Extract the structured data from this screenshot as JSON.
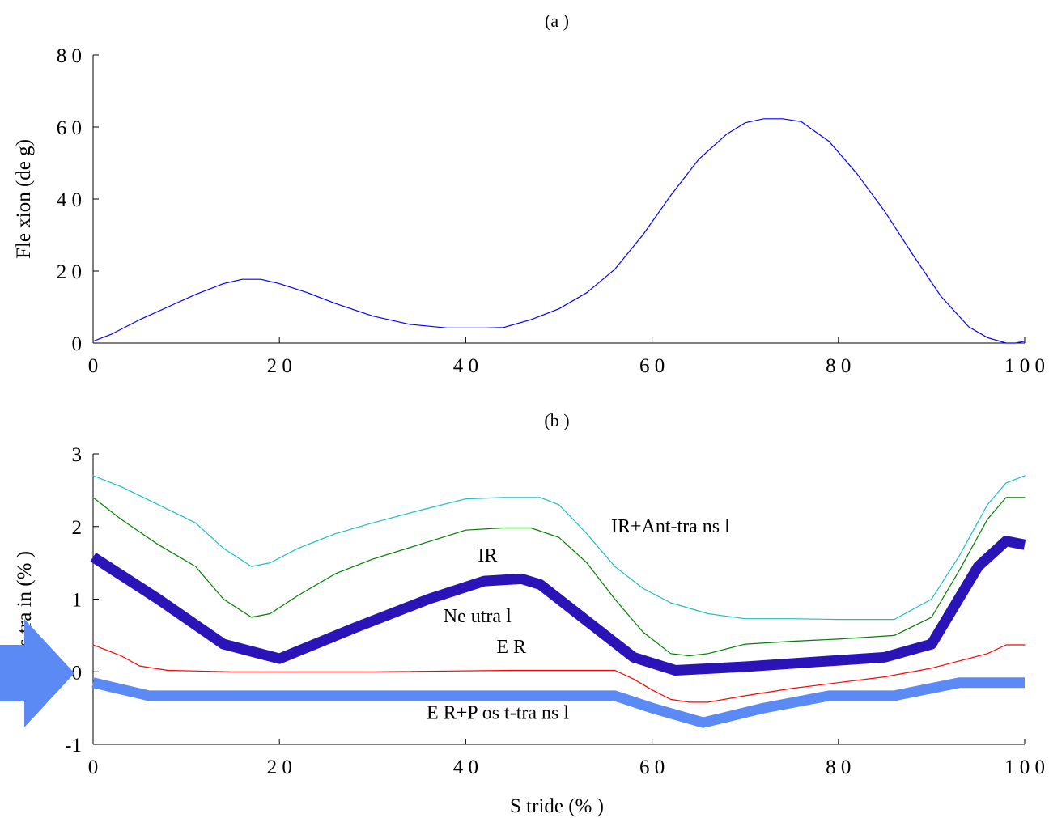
{
  "chart_data": [
    {
      "type": "line",
      "title": "(a )",
      "xlabel": "",
      "ylabel": "Fle xion (de g)",
      "xlim": [
        0,
        100
      ],
      "ylim": [
        0,
        80
      ],
      "xticks": [
        0,
        20,
        40,
        60,
        80,
        100
      ],
      "xtick_labels": [
        "0",
        "2 0",
        "4 0",
        "6 0",
        "8 0",
        "1 0 0"
      ],
      "yticks": [
        0,
        20,
        40,
        60,
        80
      ],
      "ytick_labels": [
        "0",
        "2 0",
        "4 0",
        "6 0",
        "8 0"
      ],
      "series": [
        {
          "color": "#0000ff",
          "x": [
            0,
            2,
            5,
            8,
            11,
            14,
            16,
            18,
            20,
            23,
            26,
            30,
            34,
            38,
            42,
            44,
            47,
            50,
            53,
            56,
            59,
            62,
            65,
            68,
            70,
            72,
            74,
            76,
            79,
            82,
            85,
            88,
            91,
            94,
            96,
            98,
            99,
            100
          ],
          "y": [
            0.5,
            2.5,
            6.5,
            10,
            13.5,
            16.5,
            17.7,
            17.7,
            16.5,
            14,
            11,
            7.5,
            5.2,
            4.2,
            4.2,
            4.3,
            6.5,
            9.5,
            14,
            20.5,
            30,
            41,
            51,
            58,
            61.2,
            62.3,
            62.3,
            61.5,
            56,
            47,
            36.5,
            24.5,
            13,
            4.5,
            1.5,
            0,
            0,
            0.5
          ]
        }
      ]
    },
    {
      "type": "line",
      "title": "(b )",
      "xlabel": "S tride (% )",
      "ylabel": "s tra in (% )",
      "xlim": [
        0,
        100
      ],
      "ylim": [
        -1,
        3
      ],
      "xticks": [
        0,
        20,
        40,
        60,
        80,
        100
      ],
      "xtick_labels": [
        "0",
        "2 0",
        "4 0",
        "6 0",
        "8 0",
        "1 0 0"
      ],
      "yticks": [
        -1,
        0,
        1,
        2,
        3
      ],
      "ytick_labels": [
        "-1",
        "0",
        "1",
        "2",
        "3"
      ],
      "series": [
        {
          "name": "IR+Ant-tra ns l",
          "color": "#1fbfbf",
          "width": 1.2,
          "x": [
            0,
            3,
            7,
            11,
            14,
            17,
            19,
            22,
            26,
            30,
            35,
            40,
            44,
            48,
            50,
            53,
            56,
            59,
            62,
            66,
            70,
            75,
            80,
            86,
            90,
            93,
            96,
            98,
            100
          ],
          "y": [
            2.7,
            2.55,
            2.3,
            2.05,
            1.7,
            1.45,
            1.5,
            1.7,
            1.9,
            2.05,
            2.22,
            2.38,
            2.4,
            2.4,
            2.3,
            1.9,
            1.45,
            1.15,
            0.95,
            0.8,
            0.73,
            0.73,
            0.72,
            0.72,
            1.0,
            1.6,
            2.3,
            2.6,
            2.7
          ]
        },
        {
          "name": "IR",
          "color": "#007f00",
          "width": 1.2,
          "x": [
            0,
            3,
            7,
            11,
            14,
            17,
            19,
            22,
            26,
            30,
            35,
            40,
            44,
            47,
            50,
            53,
            56,
            59,
            62,
            64,
            66,
            70,
            75,
            80,
            86,
            90,
            93,
            96,
            98,
            100
          ],
          "y": [
            2.4,
            2.1,
            1.75,
            1.45,
            1.0,
            0.75,
            0.8,
            1.05,
            1.35,
            1.55,
            1.75,
            1.95,
            1.98,
            1.98,
            1.85,
            1.5,
            1.0,
            0.55,
            0.25,
            0.22,
            0.25,
            0.38,
            0.42,
            0.45,
            0.5,
            0.75,
            1.4,
            2.1,
            2.4,
            2.4
          ]
        },
        {
          "name": "Ne utra l",
          "color": "#2a14b8",
          "width": 13,
          "x": [
            0,
            7,
            14,
            20,
            28,
            36,
            42,
            46,
            48,
            53,
            58,
            62.5,
            70,
            78,
            85,
            90,
            95,
            98,
            100
          ],
          "y": [
            1.58,
            1.0,
            0.38,
            0.18,
            0.6,
            1.0,
            1.25,
            1.28,
            1.2,
            0.7,
            0.2,
            0.02,
            0.07,
            0.14,
            0.2,
            0.38,
            1.45,
            1.8,
            1.75
          ]
        },
        {
          "name": "E R",
          "color": "#ff0000",
          "width": 1.2,
          "x": [
            0,
            3,
            5,
            8,
            15,
            30,
            45,
            56,
            58,
            60,
            62,
            64,
            66,
            70,
            75,
            80,
            85,
            90,
            93,
            96,
            98,
            100
          ],
          "y": [
            0.37,
            0.22,
            0.08,
            0.02,
            0.0,
            0.0,
            0.02,
            0.02,
            -0.1,
            -0.25,
            -0.38,
            -0.42,
            -0.42,
            -0.33,
            -0.23,
            -0.15,
            -0.07,
            0.05,
            0.15,
            0.25,
            0.37,
            0.37
          ]
        },
        {
          "name": "E R+P os t-tra ns l",
          "color": "#5b8af5",
          "width": 13,
          "x": [
            0,
            6,
            12,
            20,
            30,
            40,
            50,
            56,
            60,
            65.5,
            72,
            79,
            86,
            93,
            100
          ],
          "y": [
            -0.15,
            -0.33,
            -0.33,
            -0.33,
            -0.33,
            -0.33,
            -0.33,
            -0.33,
            -0.5,
            -0.7,
            -0.5,
            -0.33,
            -0.33,
            -0.15,
            -0.15
          ]
        }
      ],
      "annotations": [
        {
          "text": "IR+Ant-tra ns l",
          "x": 55.6,
          "y": 1.92
        },
        {
          "text": "IR",
          "x": 41.3,
          "y": 1.52
        },
        {
          "text": "Ne utra l",
          "x": 37.6,
          "y": 0.68
        },
        {
          "text": "E R",
          "x": 43.3,
          "y": 0.26
        },
        {
          "text": "E R+P os t-tra ns l",
          "x": 35.8,
          "y": -0.65
        }
      ]
    }
  ],
  "marker": {
    "color": "#5b8af5"
  }
}
